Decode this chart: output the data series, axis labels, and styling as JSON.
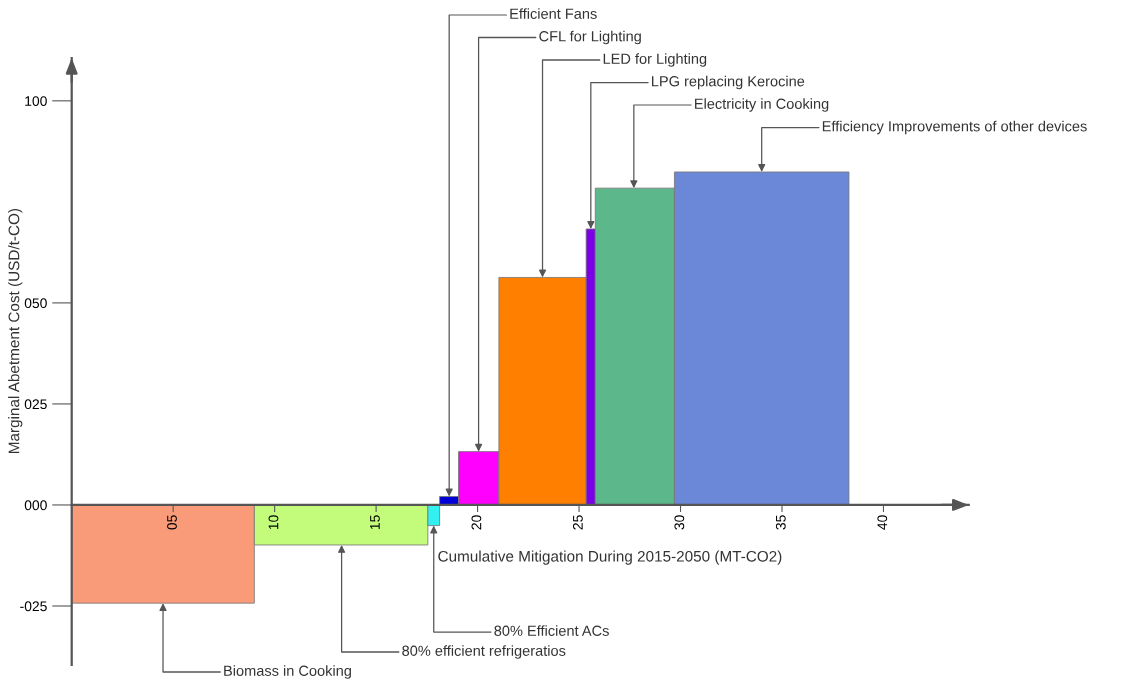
{
  "chart_data": {
    "type": "histogram",
    "xlabel": "Cumulative Mitigation During 2015-2050 (MT-CO2)",
    "ylabel": "Marginal Abetment Cost (USD/t-CO)",
    "bins": [
      0,
      9.0,
      17.55,
      18.13,
      19.06,
      21.05,
      25.35,
      25.8,
      29.7,
      38.3
    ],
    "values": [
      -24.3,
      -9.9,
      -5.1,
      2.1,
      13.2,
      56.3,
      68.3,
      78.4,
      82.4
    ],
    "colors": [
      "#f99b78",
      "#c2fc7a",
      "#33f0f0",
      "#0000d8",
      "#ff00ff",
      "#ff7f00",
      "#7b00e8",
      "#5cb88a",
      "#6b87d8"
    ],
    "xlim": [
      0,
      44.2
    ],
    "ylim": [
      -39.6,
      110.6
    ],
    "xticks": [
      {
        "value": 5,
        "label": "05"
      },
      10,
      15,
      20,
      25,
      30,
      35,
      40
    ],
    "yticks": [
      {
        "value": -25,
        "label": "-025"
      },
      {
        "value": 0,
        "label": "000"
      },
      {
        "value": 25,
        "label": "025"
      },
      {
        "value": 50,
        "label": "050"
      },
      {
        "value": 100,
        "label": "100"
      }
    ],
    "annotations": [
      {
        "text": "Biomass in Cooking",
        "x": 4.5,
        "y": -24.3
      },
      {
        "text": "80% efficient refrigeratios",
        "x": 13.3,
        "y": -9.9
      },
      {
        "text": "80% Efficient ACs",
        "x": 17.84,
        "y": -5.1
      },
      {
        "text": "Efficient Fans",
        "x": 18.6,
        "y": 2.1
      },
      {
        "text": "CFL for Lighting",
        "x": 20.05,
        "y": 13.2
      },
      {
        "text": "LED for Lighting",
        "x": 23.2,
        "y": 56.3
      },
      {
        "text": "LPG replacing Kerocine",
        "x": 25.58,
        "y": 68.3
      },
      {
        "text": "Electricity in Cooking",
        "x": 27.7,
        "y": 78.4
      },
      {
        "text": "Efficiency Improvements of other devices",
        "x": 34.0,
        "y": 82.4
      }
    ]
  }
}
